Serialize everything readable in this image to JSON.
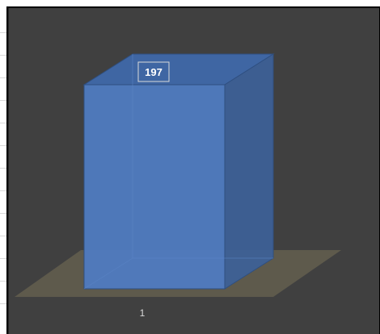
{
  "chart_data": {
    "type": "bar",
    "style": "3d-column",
    "categories": [
      "1"
    ],
    "series": [
      {
        "values": [
          197
        ]
      }
    ],
    "data_labels": [
      "197"
    ],
    "grid": false,
    "legend": "none",
    "colors": {
      "plot_background": "#404040",
      "bar_front": "#4f7bc0",
      "bar_side": "#3d6198",
      "bar_top": "#3f66a3",
      "floor": "#5e5a4c",
      "tick_text": "#d9d9d9",
      "label_border": "#d9d9d9"
    }
  }
}
